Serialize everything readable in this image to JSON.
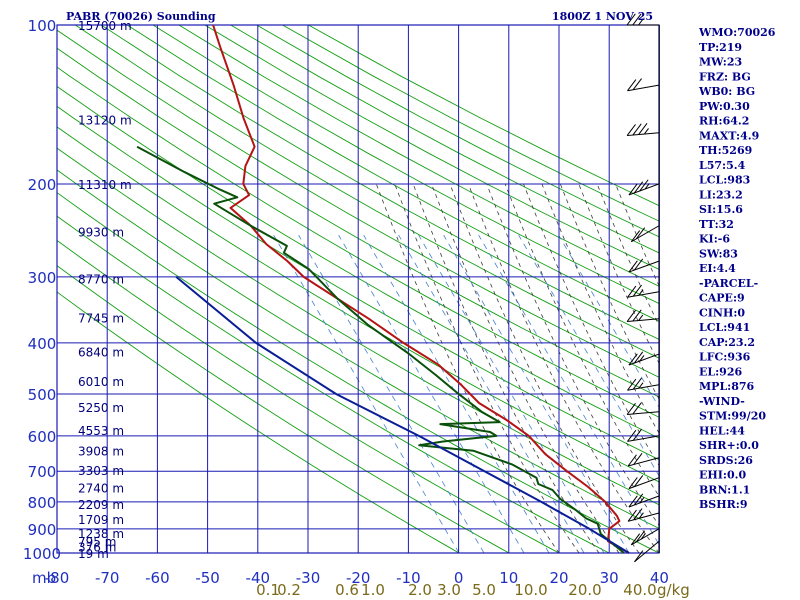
{
  "header": {
    "station": "PABR (70026) Sounding",
    "time": "1800Z  1 NOV 25"
  },
  "axes": {
    "pressure_unit": "mb",
    "mixing_unit": "g/kg",
    "temperature_ticks": [
      "-80",
      "-70",
      "-60",
      "-50",
      "-40",
      "-30",
      "-20",
      "-10",
      "0",
      "10",
      "20",
      "30",
      "40"
    ],
    "mixing_ratio_ticks": [
      "0.1",
      "0.2",
      "0.6",
      "1.0",
      "2.0",
      "3.0",
      "5.0",
      "10.0",
      "20.0",
      "40.0"
    ]
  },
  "colors": {
    "grid": "#1a1ab4",
    "dry_adiabat": "#14a014",
    "moist_adiabat": "#3c3c3c",
    "mixing_ratio": "#4682d2",
    "temperature": "#b41414",
    "dewpoint": "#0a500a",
    "parcel": "#0a1e96",
    "wind_barb": "#000000"
  },
  "stats": [
    "WMO:70026",
    "TP:219",
    "MW:23",
    "FRZ: BG",
    "WB0: BG",
    "PW:0.30",
    "RH:64.2",
    "MAXT:4.9",
    "TH:5269",
    "L57:5.4",
    "LCL:983",
    "LI:23.2",
    "SI:15.6",
    "TT:32",
    "KI:-6",
    "SW:83",
    "EI:4.4",
    "-PARCEL-",
    "CAPE:9",
    "CINH:0",
    "LCL:941",
    "CAP:23.2",
    "LFC:936",
    "EL:926",
    "MPL:876",
    "-WIND-",
    "STM:99/20",
    "HEL:44",
    "SHR+:0.0",
    "SRDS:26",
    "EHI:0.0",
    "BRN:1.1",
    "BSHR:9"
  ],
  "chart_data": {
    "type": "line",
    "title": "PABR (70026) Sounding",
    "subtitle": "1800Z  1 NOV 25",
    "pressure_levels": [
      100,
      200,
      300,
      400,
      500,
      600,
      700,
      800,
      900,
      1000
    ],
    "xlim": [
      -80,
      40
    ],
    "heights": [
      {
        "p": 100,
        "label": "15700 m"
      },
      {
        "p": 151,
        "label": "13120 m"
      },
      {
        "p": 200,
        "label": "11310 m"
      },
      {
        "p": 246,
        "label": "9930 m"
      },
      {
        "p": 302,
        "label": "8770 m"
      },
      {
        "p": 358,
        "label": "7745 m"
      },
      {
        "p": 415,
        "label": "6840 m"
      },
      {
        "p": 472,
        "label": "6010 m"
      },
      {
        "p": 529,
        "label": "5250 m"
      },
      {
        "p": 585,
        "label": "4553 m"
      },
      {
        "p": 640,
        "label": "3908 m"
      },
      {
        "p": 696,
        "label": "3303 m"
      },
      {
        "p": 752,
        "label": "2740 m"
      },
      {
        "p": 807,
        "label": "2209 m"
      },
      {
        "p": 862,
        "label": "1709 m"
      },
      {
        "p": 917,
        "label": "1238 m"
      },
      {
        "p": 950,
        "label": "795 m"
      },
      {
        "p": 972,
        "label": "376 m"
      },
      {
        "p": 1000,
        "label": "19 m"
      }
    ],
    "series": [
      {
        "key": "temperature",
        "points": [
          [
            100,
            -57.5
          ],
          [
            110,
            -57.4
          ],
          [
            130,
            -57.0
          ],
          [
            150,
            -57.0
          ],
          [
            170,
            -56.5
          ],
          [
            185,
            -59.5
          ],
          [
            200,
            -61.0
          ],
          [
            210,
            -60.5
          ],
          [
            222,
            -65.0
          ],
          [
            240,
            -62.0
          ],
          [
            260,
            -60.0
          ],
          [
            280,
            -56.8
          ],
          [
            300,
            -54.5
          ],
          [
            330,
            -49.0
          ],
          [
            360,
            -44.0
          ],
          [
            400,
            -38.5
          ],
          [
            440,
            -32.8
          ],
          [
            480,
            -29.5
          ],
          [
            520,
            -27.0
          ],
          [
            560,
            -22.5
          ],
          [
            600,
            -19.0
          ],
          [
            650,
            -16.8
          ],
          [
            700,
            -13.5
          ],
          [
            750,
            -10.2
          ],
          [
            800,
            -7.7
          ],
          [
            850,
            -6.2
          ],
          [
            870,
            -6.0
          ],
          [
            900,
            -8.5
          ],
          [
            950,
            -9.5
          ],
          [
            1000,
            -6.0
          ]
        ]
      },
      {
        "key": "dewpoint",
        "points": [
          [
            170,
            -80.0
          ],
          [
            190,
            -72.0
          ],
          [
            205,
            -66.0
          ],
          [
            212,
            -63.0
          ],
          [
            218,
            -68.0
          ],
          [
            240,
            -62.0
          ],
          [
            262,
            -56.0
          ],
          [
            270,
            -57.0
          ],
          [
            290,
            -53.0
          ],
          [
            330,
            -49.0
          ],
          [
            370,
            -44.5
          ],
          [
            420,
            -38.0
          ],
          [
            460,
            -34.0
          ],
          [
            500,
            -30.5
          ],
          [
            540,
            -27.0
          ],
          [
            565,
            -24.0
          ],
          [
            570,
            -36.0
          ],
          [
            590,
            -26.5
          ],
          [
            600,
            -25.5
          ],
          [
            615,
            -36.5
          ],
          [
            625,
            -41.5
          ],
          [
            640,
            -31.0
          ],
          [
            680,
            -24.0
          ],
          [
            720,
            -20.0
          ],
          [
            740,
            -20.0
          ],
          [
            760,
            -17.5
          ],
          [
            790,
            -16.5
          ],
          [
            830,
            -14.0
          ],
          [
            860,
            -12.5
          ],
          [
            880,
            -10.5
          ],
          [
            920,
            -10.5
          ],
          [
            1000,
            -7.0
          ]
        ]
      },
      {
        "key": "parcel",
        "points": [
          [
            300,
            -80.0
          ],
          [
            400,
            -68.0
          ],
          [
            500,
            -55.0
          ],
          [
            600,
            -41.0
          ],
          [
            700,
            -30.0
          ],
          [
            800,
            -20.5
          ],
          [
            900,
            -12.5
          ],
          [
            1000,
            -6.0
          ]
        ]
      }
    ],
    "wind_barbs": [
      {
        "p": 100,
        "dir": 270,
        "spd": 15
      },
      {
        "p": 130,
        "dir": 260,
        "spd": 20
      },
      {
        "p": 160,
        "dir": 265,
        "spd": 25
      },
      {
        "p": 200,
        "dir": 250,
        "spd": 25
      },
      {
        "p": 240,
        "dir": 240,
        "spd": 20
      },
      {
        "p": 280,
        "dir": 250,
        "spd": 20
      },
      {
        "p": 320,
        "dir": 260,
        "spd": 15
      },
      {
        "p": 360,
        "dir": 265,
        "spd": 15
      },
      {
        "p": 420,
        "dir": 250,
        "spd": 15
      },
      {
        "p": 480,
        "dir": 260,
        "spd": 15
      },
      {
        "p": 540,
        "dir": 265,
        "spd": 20
      },
      {
        "p": 600,
        "dir": 260,
        "spd": 20
      },
      {
        "p": 660,
        "dir": 255,
        "spd": 20
      },
      {
        "p": 720,
        "dir": 250,
        "spd": 20
      },
      {
        "p": 780,
        "dir": 250,
        "spd": 15
      },
      {
        "p": 840,
        "dir": 255,
        "spd": 15
      },
      {
        "p": 900,
        "dir": 240,
        "spd": 15
      },
      {
        "p": 950,
        "dir": 230,
        "spd": 10
      }
    ]
  }
}
